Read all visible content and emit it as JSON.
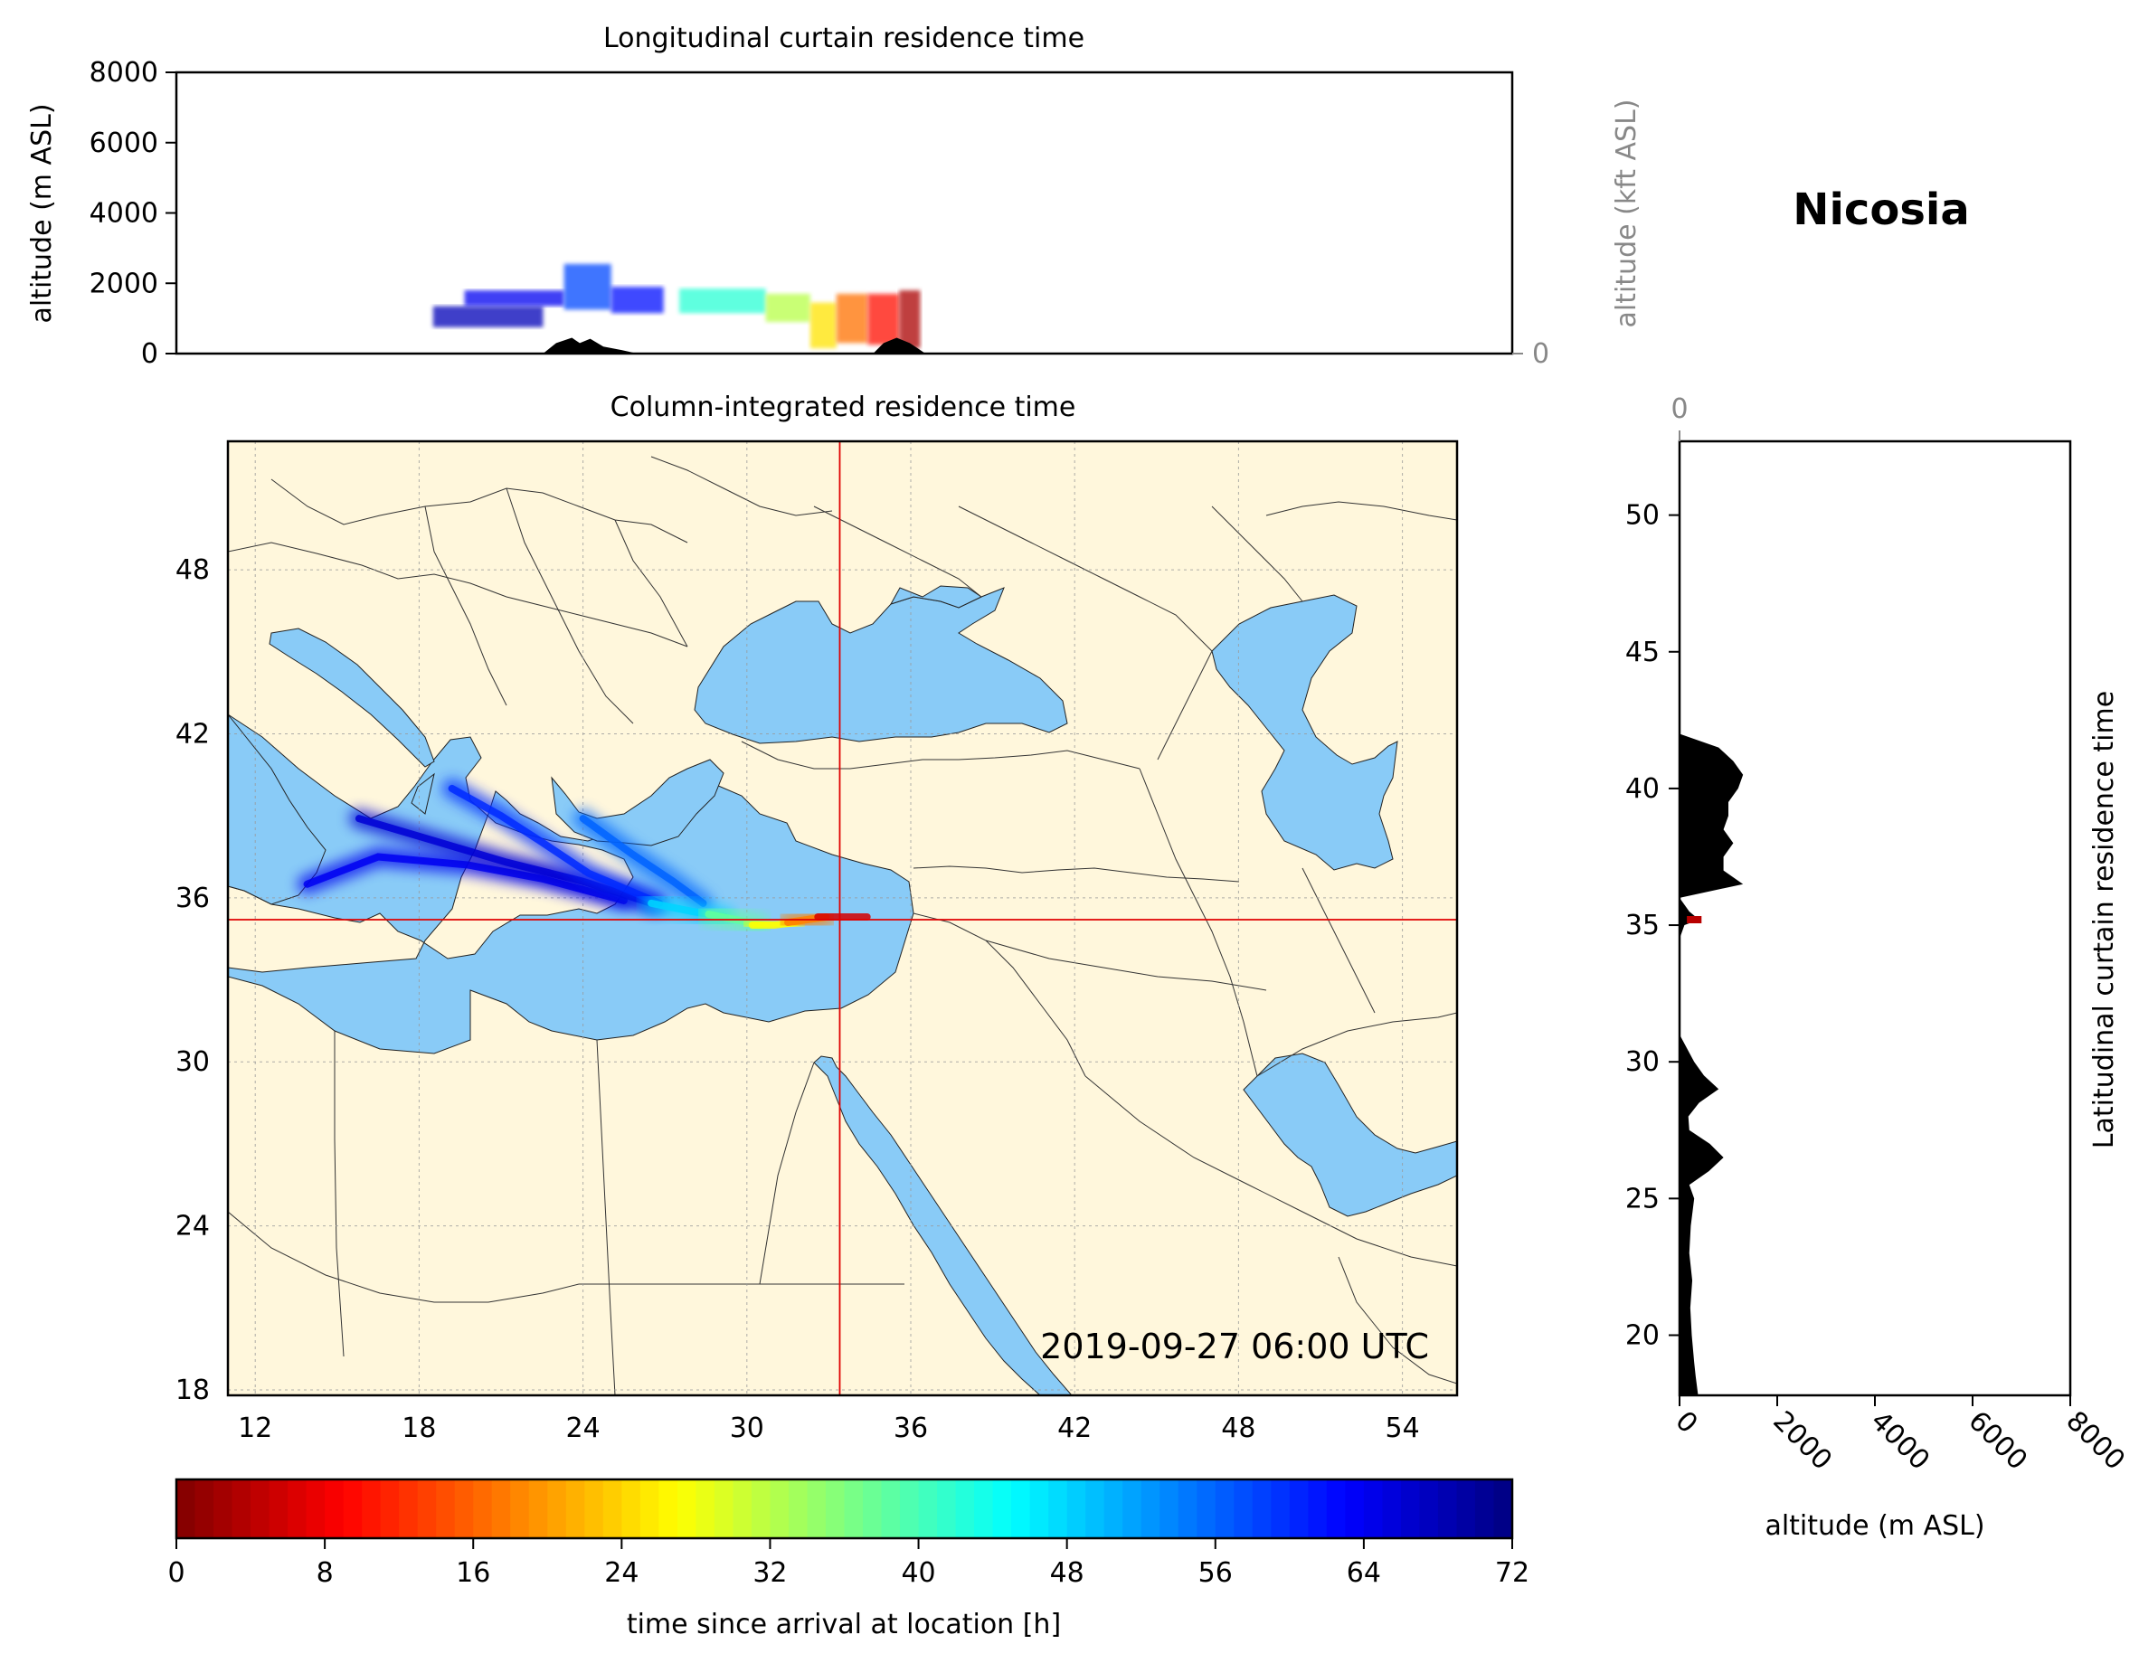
{
  "location": "Nicosia",
  "timestamp": "2019-09-27 06:00 UTC",
  "colors": {
    "land": "#fff7dc",
    "water": "#89cbf7",
    "terrain": "#000000",
    "crosshair": "#e00000",
    "grid": "#9a9a9a",
    "secondary_axis": "#888888"
  },
  "chart_data": [
    {
      "type": "heatmap",
      "id": "longitudinal-curtain",
      "title": "Longitudinal curtain residence time",
      "xlabel": "",
      "ylabel": "altitude (m ASL)",
      "ylabel_right": "altitude (kft ASL)",
      "xlim": [
        6,
        57
      ],
      "ylim": [
        0,
        8000
      ],
      "yticks": [
        0,
        2000,
        4000,
        6000,
        8000
      ],
      "yticks_right": [
        0,
        50,
        100
      ],
      "terrain_profile": {
        "lon": [
          6,
          20,
          20.5,
          21.1,
          21.4,
          21.8,
          22.3,
          23.0,
          23.6,
          24.2,
          24.9,
          25.6,
          26.3,
          27.0,
          27.8,
          28.6,
          29.3,
          30.0,
          30.8,
          31.3,
          31.8,
          32.2,
          32.6,
          33.0,
          33.5,
          34.0,
          34.3,
          34.6,
          34.9,
          35.2,
          35.6,
          36.0,
          36.5,
          37.0,
          38.0,
          39.0,
          40.0,
          41.0,
          42.0,
          43.0,
          44.0,
          44.5,
          45.0,
          45.5,
          46.0,
          46.5,
          47.0,
          47.5,
          48.0,
          48.5,
          49.0,
          49.5,
          50.0,
          50.5,
          51.0,
          51.5,
          52.0,
          52.5,
          53.0,
          53.5,
          54.0,
          54.3,
          55.0,
          57
        ],
        "alt": [
          0,
          0,
          300,
          450,
          300,
          420,
          200,
          100,
          0,
          0,
          0,
          0,
          0,
          0,
          0,
          0,
          0,
          0,
          0,
          0,
          0,
          0,
          0,
          300,
          450,
          300,
          150,
          0,
          0,
          0,
          0,
          0,
          0,
          0,
          0,
          0,
          0,
          0,
          0,
          0,
          0,
          0,
          0,
          0,
          0,
          0,
          0,
          0,
          0,
          0,
          0,
          0,
          0,
          0,
          0,
          0,
          0,
          0,
          0,
          0,
          0,
          0,
          0,
          0
        ]
      },
      "residence_blobs": [
        {
          "lon": [
            15.8,
            20.0
          ],
          "alt": [
            750,
            1350
          ],
          "hours": 68
        },
        {
          "lon": [
            17.0,
            20.8
          ],
          "alt": [
            1350,
            1800
          ],
          "hours": 64
        },
        {
          "lon": [
            20.8,
            22.6
          ],
          "alt": [
            1250,
            2550
          ],
          "hours": 58
        },
        {
          "lon": [
            22.6,
            24.6
          ],
          "alt": [
            1150,
            1900
          ],
          "hours": 62
        },
        {
          "lon": [
            25.2,
            28.5
          ],
          "alt": [
            1150,
            1850
          ],
          "hours": 42
        },
        {
          "lon": [
            28.5,
            30.2
          ],
          "alt": [
            900,
            1700
          ],
          "hours": 32
        },
        {
          "lon": [
            30.2,
            31.2
          ],
          "alt": [
            150,
            1450
          ],
          "hours": 25
        },
        {
          "lon": [
            31.2,
            32.4
          ],
          "alt": [
            300,
            1700
          ],
          "hours": 17
        },
        {
          "lon": [
            32.4,
            33.6
          ],
          "alt": [
            250,
            1700
          ],
          "hours": 10
        },
        {
          "lon": [
            33.6,
            34.4
          ],
          "alt": [
            150,
            1800
          ],
          "hours": 3
        }
      ]
    },
    {
      "type": "heatmap",
      "id": "column-integrated",
      "title": "Column-integrated residence time",
      "xlabel": "",
      "ylabel": "",
      "xlim": [
        11,
        56
      ],
      "ylim": [
        17.8,
        52.7
      ],
      "xticks": [
        12,
        18,
        24,
        30,
        36,
        42,
        48,
        54
      ],
      "yticks": [
        18,
        24,
        30,
        36,
        42,
        48
      ],
      "crosshair": {
        "lon": 33.4,
        "lat": 35.2
      },
      "plume_strands": [
        {
          "hours": 64,
          "path": [
            [
              13.9,
              36.5
            ],
            [
              16.5,
              37.5
            ],
            [
              19.8,
              37.2
            ],
            [
              22.5,
              36.7
            ],
            [
              25.5,
              35.9
            ]
          ]
        },
        {
          "hours": 66,
          "path": [
            [
              15.8,
              38.9
            ],
            [
              18.5,
              38.1
            ],
            [
              21.2,
              37.3
            ],
            [
              24.0,
              36.6
            ],
            [
              26.5,
              35.8
            ]
          ]
        },
        {
          "hours": 60,
          "path": [
            [
              19.2,
              40.0
            ],
            [
              21.0,
              39.0
            ],
            [
              22.4,
              38.1
            ],
            [
              24.2,
              36.9
            ],
            [
              26.8,
              35.8
            ]
          ]
        },
        {
          "hours": 56,
          "path": [
            [
              24.0,
              38.9
            ],
            [
              25.8,
              37.6
            ],
            [
              27.3,
              36.6
            ],
            [
              28.4,
              35.8
            ]
          ]
        },
        {
          "hours": 48,
          "path": [
            [
              26.5,
              35.8
            ],
            [
              28.0,
              35.5
            ],
            [
              29.2,
              35.3
            ]
          ]
        },
        {
          "hours": 38,
          "path": [
            [
              28.6,
              35.4
            ],
            [
              29.6,
              35.2
            ],
            [
              30.5,
              35.0
            ]
          ]
        },
        {
          "hours": 27,
          "path": [
            [
              30.2,
              35.0
            ],
            [
              31.0,
              35.0
            ],
            [
              31.8,
              35.1
            ]
          ]
        },
        {
          "hours": 18,
          "path": [
            [
              31.5,
              35.1
            ],
            [
              32.2,
              35.2
            ],
            [
              32.9,
              35.3
            ]
          ]
        },
        {
          "hours": 6,
          "path": [
            [
              32.6,
              35.3
            ],
            [
              33.4,
              35.3
            ],
            [
              34.4,
              35.3
            ]
          ]
        }
      ]
    },
    {
      "type": "heatmap",
      "id": "latitudinal-curtain",
      "title": "Latitudinal curtain residence time",
      "xlabel": "altitude (m ASL)",
      "ylabel": "",
      "xlim": [
        0,
        8000
      ],
      "ylim": [
        17.8,
        52.7
      ],
      "xticks": [
        0,
        2000,
        4000,
        6000,
        8000
      ],
      "xticks_top": [
        0,
        50,
        100
      ],
      "yticks": [
        20,
        25,
        30,
        35,
        40,
        45,
        50
      ],
      "terrain_profile": {
        "lat": [
          17.8,
          18.5,
          19.0,
          20.0,
          21.0,
          22.0,
          23.0,
          24.0,
          25.0,
          25.5,
          26.0,
          26.5,
          27.0,
          27.5,
          28.0,
          28.5,
          29.0,
          29.5,
          30.0,
          30.5,
          31.0,
          31.5,
          32.0,
          33.0,
          34.0,
          34.5,
          35.0,
          35.2,
          35.5,
          36.0,
          36.5,
          37.0,
          37.5,
          38.0,
          38.5,
          39.0,
          39.5,
          40.0,
          40.5,
          41.0,
          41.5,
          42.0,
          42.5,
          43.0,
          44.0,
          45.0,
          46.0,
          47.0,
          48.0,
          49.0,
          50.0,
          51.0,
          52.0,
          52.7
        ],
        "alt": [
          380,
          330,
          300,
          250,
          220,
          260,
          200,
          230,
          300,
          200,
          600,
          900,
          620,
          200,
          180,
          400,
          800,
          500,
          300,
          150,
          0,
          0,
          0,
          0,
          0,
          0,
          100,
          400,
          200,
          0,
          1300,
          900,
          900,
          1100,
          900,
          1000,
          1000,
          1200,
          1300,
          1100,
          800,
          0,
          0,
          0,
          0,
          0,
          0,
          0,
          0,
          0,
          0,
          0,
          0,
          0
        ]
      },
      "residence_marker": {
        "lat": 35.2,
        "alt": [
          150,
          450
        ],
        "hours": 4
      }
    }
  ],
  "colorbar": {
    "label": "time since arrival at location [h]",
    "min": 0,
    "max": 72,
    "ticks": [
      0,
      8,
      16,
      24,
      32,
      40,
      48,
      56,
      64,
      72
    ]
  }
}
